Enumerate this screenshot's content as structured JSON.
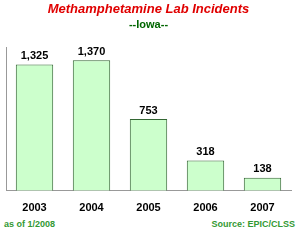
{
  "chart_data": {
    "type": "bar",
    "title": "Methamphetamine Lab Incidents",
    "subtitle": "--Iowa--",
    "categories": [
      "2003",
      "2004",
      "2005",
      "2006",
      "2007"
    ],
    "values": [
      1325,
      1370,
      753,
      318,
      138
    ],
    "value_labels": [
      "1,325",
      "1,370",
      "753",
      "318",
      "138"
    ],
    "color": "#ccffcc",
    "ylim": [
      0,
      1500
    ],
    "grid": false,
    "data_labels": true,
    "tick_labels": "x",
    "annotations": [
      "as of 1/2008",
      "Source: EPIC/CLSS"
    ]
  }
}
